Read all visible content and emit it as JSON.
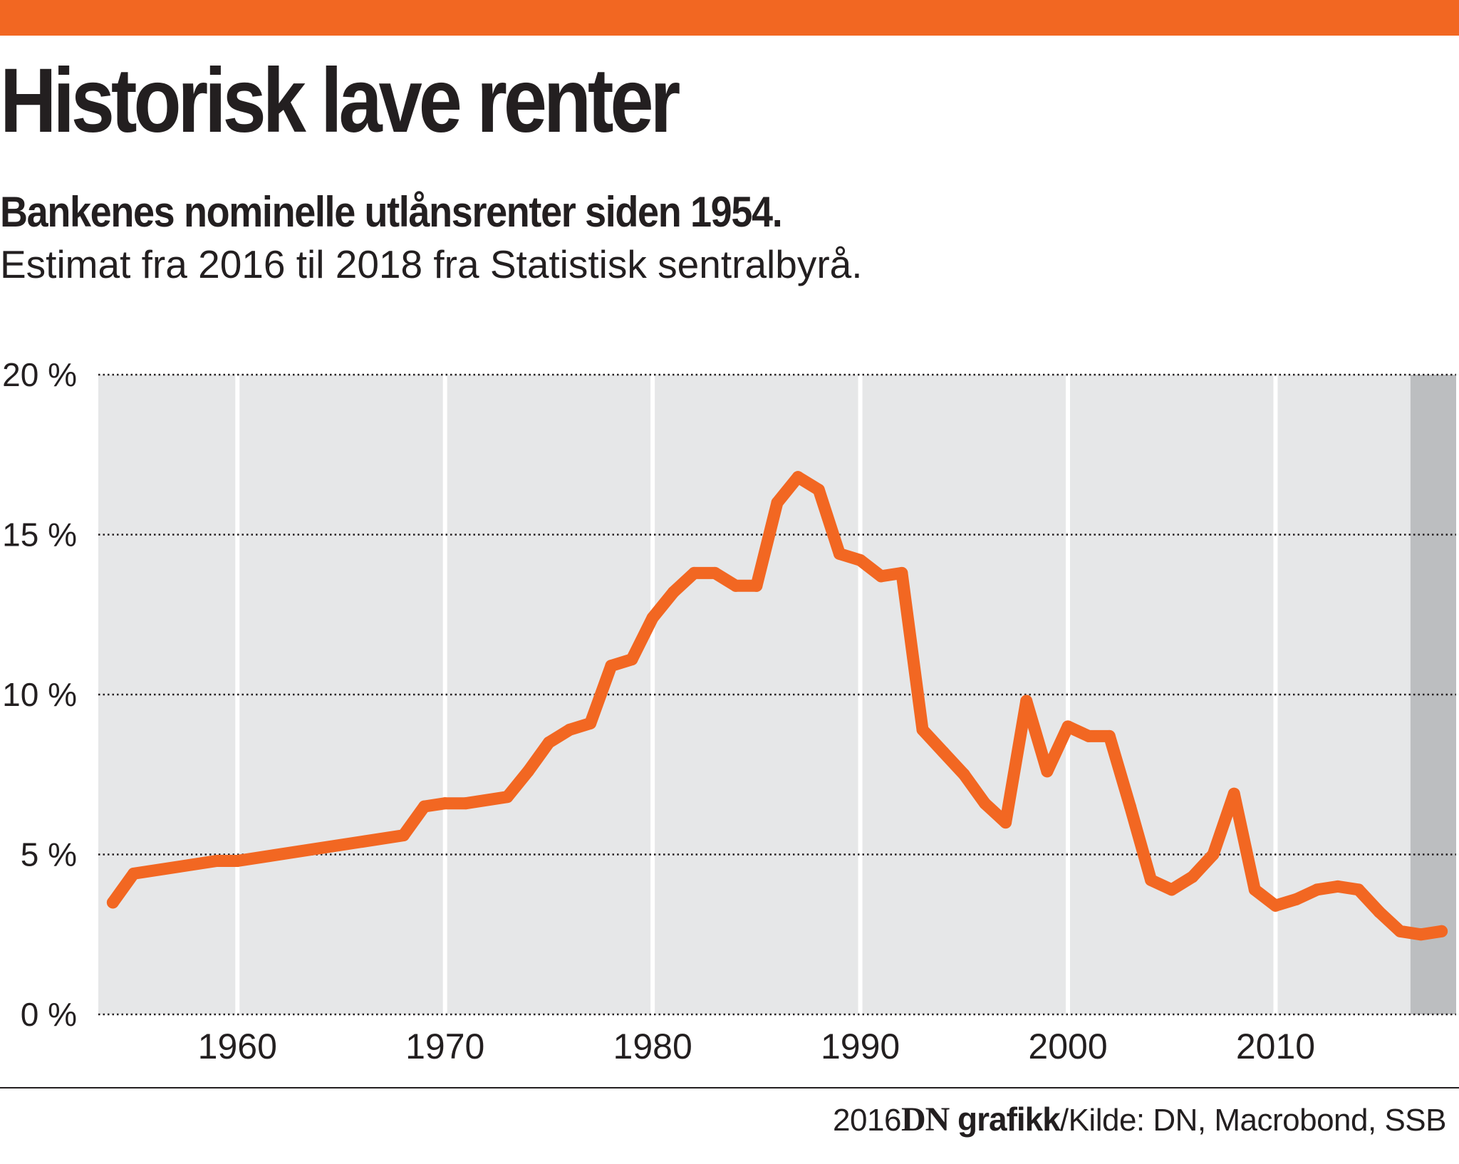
{
  "header": {
    "title": "Historisk lave renter",
    "subtitle": "Bankenes nominelle utlånsrenter siden 1954.",
    "note": "Estimat fra 2016 til 2018 fra Statistisk sentralbyrå."
  },
  "footer": {
    "year": "2016",
    "brand": "DN",
    "brand_suffix": "grafikk",
    "source": "/Kilde: DN, Macrobond, SSB"
  },
  "colors": {
    "accent": "#f26722",
    "plot_background": "#e6e7e8",
    "estimate_band": "#bcbec0",
    "gridline": "#231f20",
    "text": "#231f20"
  },
  "chart_data": {
    "type": "line",
    "title": "Historisk lave renter",
    "subtitle": "Bankenes nominelle utlånsrenter siden 1954.",
    "xlabel": "",
    "ylabel": "",
    "xlim": [
      1953.3,
      2018.7
    ],
    "ylim": [
      0,
      20
    ],
    "grid": true,
    "estimate_from": 2016.5,
    "x_ticks": [
      {
        "value": 1960,
        "label": "1960"
      },
      {
        "value": 1970,
        "label": "1970"
      },
      {
        "value": 1980,
        "label": "1980"
      },
      {
        "value": 1990,
        "label": "1990"
      },
      {
        "value": 2000,
        "label": "2000"
      },
      {
        "value": 2010,
        "label": "2010"
      }
    ],
    "y_ticks": [
      {
        "value": 0,
        "label": "0 %"
      },
      {
        "value": 5,
        "label": "5 %"
      },
      {
        "value": 10,
        "label": "10 %"
      },
      {
        "value": 15,
        "label": "15 %"
      },
      {
        "value": 20,
        "label": "20 %"
      }
    ],
    "series": [
      {
        "x": [
          1954,
          1955,
          1959,
          1960,
          1968,
          1969,
          1970,
          1971,
          1973,
          1974,
          1975,
          1976,
          1977,
          1978,
          1979,
          1980,
          1981,
          1982,
          1983,
          1984,
          1985,
          1986,
          1987,
          1988,
          1989,
          1990,
          1991,
          1992,
          1993,
          1994,
          1995,
          1996,
          1997,
          1998,
          1999,
          2000,
          2001,
          2002,
          2003,
          2004,
          2005,
          2006,
          2007,
          2008,
          2009,
          2010,
          2011,
          2012,
          2013,
          2014,
          2015,
          2016,
          2017,
          2018
        ],
        "values": [
          3.5,
          4.4,
          4.8,
          4.8,
          5.6,
          6.5,
          6.6,
          6.6,
          6.8,
          7.6,
          8.5,
          8.9,
          9.1,
          10.9,
          11.1,
          12.4,
          13.2,
          13.8,
          13.8,
          13.4,
          13.4,
          16.0,
          16.8,
          16.4,
          14.4,
          14.2,
          13.7,
          13.8,
          8.9,
          8.2,
          7.5,
          6.6,
          6.0,
          9.8,
          7.6,
          9.0,
          8.7,
          8.7,
          6.5,
          4.2,
          3.9,
          4.3,
          5.0,
          6.9,
          3.9,
          3.4,
          3.6,
          3.9,
          4.0,
          3.9,
          3.2,
          2.6,
          2.5,
          2.6
        ]
      }
    ]
  }
}
